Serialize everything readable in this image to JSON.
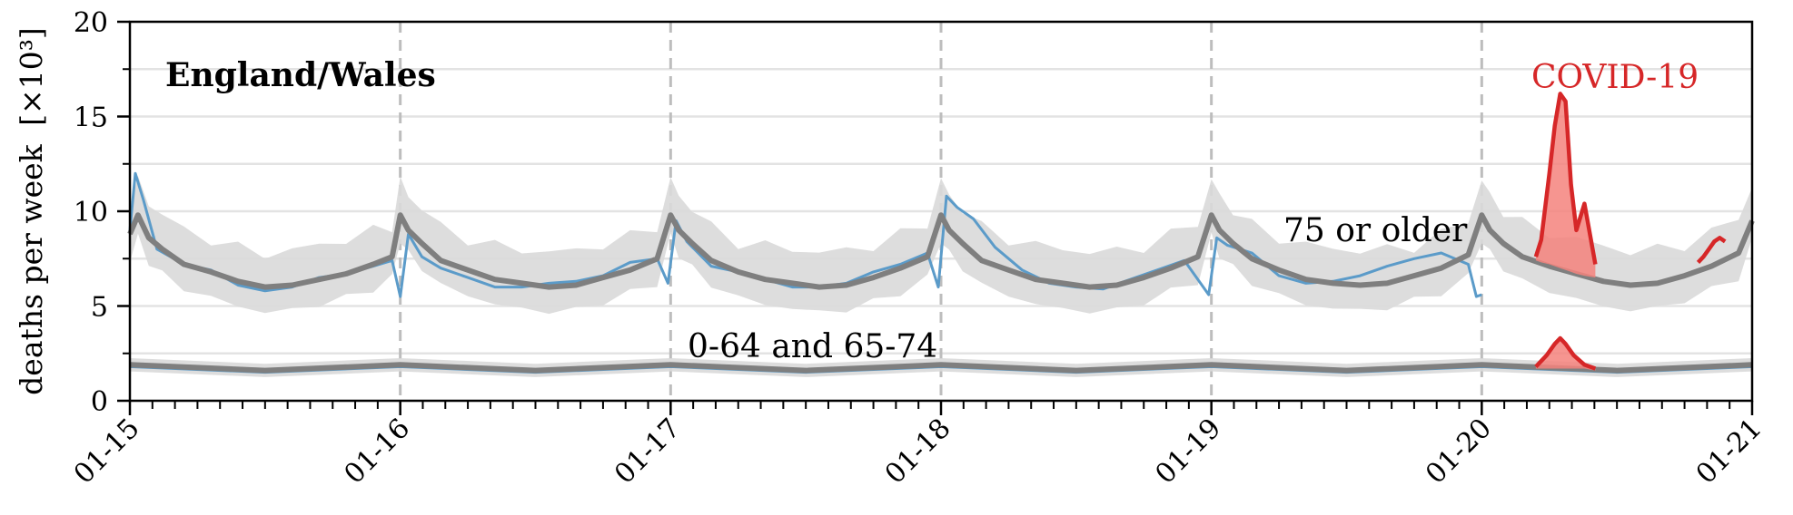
{
  "chart_data": {
    "type": "line",
    "title": "England/Wales",
    "ylabel": "deaths per week",
    "ylabel_unit": "[×10³]",
    "xlim": [
      2015,
      2021
    ],
    "ylim": [
      0,
      20
    ],
    "yticks": [
      "0",
      "5",
      "10",
      "15",
      "20"
    ],
    "xticks": [
      "01-15",
      "01-16",
      "01-17",
      "01-18",
      "01-19",
      "01-20",
      "01-21"
    ],
    "grid": "horizontal",
    "annotations": {
      "older": "75 or older",
      "younger": "0-64 and 65-74",
      "covid": "COVID-19"
    },
    "colors": {
      "expected": "#7f7f7f",
      "band": "#d9d9d9",
      "observed": "#5b9bc9",
      "covid": "#d62728",
      "covid_fill": "#f4837d",
      "grid": "#e3e3e3",
      "dashed": "#bdbdbd"
    },
    "series": [
      {
        "group": "75 or older",
        "role": "expected",
        "x": [
          2015.0,
          2015.03,
          2015.07,
          2015.12,
          2015.2,
          2015.3,
          2015.4,
          2015.5,
          2015.6,
          2015.7,
          2015.8,
          2015.9,
          2015.97,
          2016.0,
          2016.03,
          2016.08,
          2016.15,
          2016.25,
          2016.35,
          2016.45,
          2016.55,
          2016.65,
          2016.75,
          2016.85,
          2016.95,
          2017.0,
          2017.03,
          2017.08,
          2017.15,
          2017.25,
          2017.35,
          2017.45,
          2017.55,
          2017.65,
          2017.75,
          2017.85,
          2017.95,
          2018.0,
          2018.03,
          2018.08,
          2018.15,
          2018.25,
          2018.35,
          2018.45,
          2018.55,
          2018.65,
          2018.75,
          2018.85,
          2018.95,
          2019.0,
          2019.03,
          2019.08,
          2019.15,
          2019.25,
          2019.35,
          2019.45,
          2019.55,
          2019.65,
          2019.75,
          2019.85,
          2019.95,
          2020.0,
          2020.03,
          2020.08,
          2020.15,
          2020.25,
          2020.35,
          2020.45,
          2020.55,
          2020.65,
          2020.75,
          2020.85,
          2020.95,
          2021.0
        ],
        "y": [
          8.8,
          9.8,
          8.6,
          8.0,
          7.2,
          6.8,
          6.3,
          6.0,
          6.1,
          6.4,
          6.7,
          7.2,
          7.6,
          9.8,
          9.0,
          8.3,
          7.4,
          6.9,
          6.4,
          6.2,
          6.0,
          6.1,
          6.5,
          6.9,
          7.5,
          9.8,
          9.0,
          8.3,
          7.4,
          6.8,
          6.4,
          6.2,
          6.0,
          6.1,
          6.5,
          7.0,
          7.6,
          9.8,
          9.0,
          8.3,
          7.4,
          6.9,
          6.4,
          6.2,
          6.0,
          6.1,
          6.5,
          7.0,
          7.6,
          9.8,
          9.0,
          8.3,
          7.5,
          6.9,
          6.4,
          6.2,
          6.1,
          6.2,
          6.6,
          7.0,
          7.7,
          9.8,
          9.0,
          8.3,
          7.6,
          7.1,
          6.7,
          6.3,
          6.1,
          6.2,
          6.6,
          7.1,
          7.8,
          9.5
        ]
      },
      {
        "group": "75 or older",
        "role": "observed",
        "x": [
          2015.0,
          2015.02,
          2015.05,
          2015.1,
          2015.2,
          2015.3,
          2015.4,
          2015.5,
          2015.6,
          2015.7,
          2015.8,
          2015.9,
          2015.97,
          2016.0,
          2016.03,
          2016.08,
          2016.15,
          2016.25,
          2016.35,
          2016.45,
          2016.55,
          2016.65,
          2016.75,
          2016.85,
          2016.95,
          2016.99,
          2017.02,
          2017.06,
          2017.15,
          2017.25,
          2017.35,
          2017.45,
          2017.55,
          2017.65,
          2017.75,
          2017.85,
          2017.95,
          2017.99,
          2018.02,
          2018.06,
          2018.12,
          2018.2,
          2018.3,
          2018.4,
          2018.5,
          2018.6,
          2018.7,
          2018.8,
          2018.9,
          2018.99,
          2019.02,
          2019.06,
          2019.15,
          2019.25,
          2019.35,
          2019.45,
          2019.55,
          2019.65,
          2019.75,
          2019.85,
          2019.95,
          2019.98,
          2020.0
        ],
        "y": [
          9.0,
          12.0,
          10.6,
          8.0,
          7.2,
          6.9,
          6.1,
          5.8,
          6.0,
          6.5,
          6.7,
          7.1,
          7.4,
          5.5,
          8.8,
          7.6,
          7.0,
          6.5,
          6.0,
          6.0,
          6.2,
          6.3,
          6.6,
          7.3,
          7.5,
          6.2,
          9.5,
          8.4,
          7.1,
          6.8,
          6.4,
          6.0,
          6.0,
          6.2,
          6.8,
          7.2,
          7.8,
          6.0,
          10.8,
          10.2,
          9.6,
          8.1,
          6.9,
          6.2,
          6.0,
          5.9,
          6.4,
          6.9,
          7.4,
          5.6,
          8.6,
          8.2,
          7.8,
          6.6,
          6.2,
          6.3,
          6.6,
          7.1,
          7.5,
          7.8,
          7.2,
          5.5,
          5.6
        ]
      },
      {
        "group": "75 or older",
        "role": "covid",
        "x": [
          2020.2,
          2020.22,
          2020.25,
          2020.27,
          2020.29,
          2020.31,
          2020.33,
          2020.35,
          2020.38,
          2020.42
        ],
        "y": [
          7.6,
          8.5,
          12.0,
          14.5,
          16.2,
          15.8,
          11.4,
          9.0,
          10.4,
          7.2
        ],
        "fill_lower": [
          7.4,
          7.3,
          7.2,
          7.1,
          7.0,
          6.9,
          6.8,
          6.7,
          6.6,
          6.5
        ]
      },
      {
        "group": "75 or older",
        "role": "covid",
        "x": [
          2020.8,
          2020.82,
          2020.84,
          2020.86,
          2020.88,
          2020.9
        ],
        "y": [
          7.3,
          7.6,
          8.0,
          8.4,
          8.6,
          8.4
        ]
      },
      {
        "group": "0-64 and 65-74",
        "role": "expected",
        "x": [
          2015.0,
          2015.5,
          2016.0,
          2016.5,
          2017.0,
          2017.5,
          2018.0,
          2018.5,
          2019.0,
          2019.5,
          2020.0,
          2020.5,
          2021.0
        ],
        "y": [
          1.9,
          1.6,
          1.9,
          1.6,
          1.9,
          1.6,
          1.9,
          1.6,
          1.9,
          1.6,
          1.9,
          1.6,
          1.9
        ]
      },
      {
        "group": "0-64 and 65-74",
        "role": "covid",
        "x": [
          2020.2,
          2020.24,
          2020.27,
          2020.29,
          2020.31,
          2020.34,
          2020.38,
          2020.42
        ],
        "y": [
          1.8,
          2.4,
          3.0,
          3.3,
          3.0,
          2.4,
          1.9,
          1.7
        ],
        "fill_lower": [
          1.7,
          1.7,
          1.7,
          1.7,
          1.7,
          1.7,
          1.7,
          1.6
        ]
      }
    ]
  }
}
